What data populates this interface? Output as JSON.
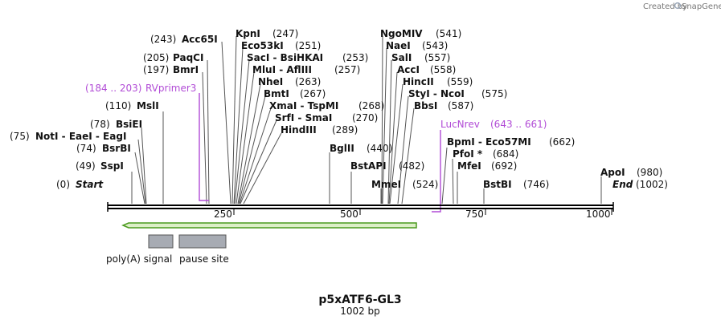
{
  "credit": {
    "prefix": "Created by",
    "brand": "SnapGene"
  },
  "plasmid": {
    "name": "p5xATF6-GL3",
    "length_label": "1002 bp"
  },
  "ruler": {
    "ticks": [
      "250",
      "500",
      "750",
      "1000"
    ]
  },
  "start_label": {
    "pos": "(0)",
    "name": "Start"
  },
  "end_label": {
    "pos": "(1002)",
    "name": "End"
  },
  "sites": [
    {
      "name": "SspI",
      "pos": "(49)"
    },
    {
      "name": "BsrBI",
      "pos": "(74)"
    },
    {
      "name": "NotI - EaeI - EagI",
      "pos": "(75)"
    },
    {
      "name": "BsiEI",
      "pos": "(78)"
    },
    {
      "name": "MslI",
      "pos": "(110)"
    },
    {
      "name": "BmrI",
      "pos": "(197)"
    },
    {
      "name": "PaqCI",
      "pos": "(205)"
    },
    {
      "name": "Acc65I",
      "pos": "(243)"
    },
    {
      "name": "KpnI",
      "pos": "(247)"
    },
    {
      "name": "Eco53kI",
      "pos": "(251)"
    },
    {
      "name": "SacI - BsiHKAI",
      "pos": "(253)"
    },
    {
      "name": "MluI - AflIII",
      "pos": "(257)"
    },
    {
      "name": "NheI",
      "pos": "(263)"
    },
    {
      "name": "BmtI",
      "pos": "(267)"
    },
    {
      "name": "XmaI - TspMI",
      "pos": "(268)"
    },
    {
      "name": "SrfI - SmaI",
      "pos": "(270)"
    },
    {
      "name": "HindIII",
      "pos": "(289)"
    },
    {
      "name": "BglII",
      "pos": "(440)"
    },
    {
      "name": "BstAPI",
      "pos": "(482)"
    },
    {
      "name": "MmeI",
      "pos": "(524)"
    },
    {
      "name": "NgoMIV",
      "pos": "(541)"
    },
    {
      "name": "NaeI",
      "pos": "(543)"
    },
    {
      "name": "SalI",
      "pos": "(557)"
    },
    {
      "name": "AccI",
      "pos": "(558)"
    },
    {
      "name": "HincII",
      "pos": "(559)"
    },
    {
      "name": "StyI - NcoI",
      "pos": "(575)"
    },
    {
      "name": "BbsI",
      "pos": "(587)"
    },
    {
      "name": "BpmI - Eco57MI",
      "pos": "(662)"
    },
    {
      "name": "PfoI *",
      "pos": "(684)"
    },
    {
      "name": "MfeI",
      "pos": "(692)"
    },
    {
      "name": "BstBI",
      "pos": "(746)"
    },
    {
      "name": "ApoI",
      "pos": "(980)"
    }
  ],
  "primers": [
    {
      "name": "RVprimer3",
      "range": "(184 .. 203)"
    },
    {
      "name": "LucNrev",
      "range": "(643 .. 661)"
    }
  ],
  "features": [
    {
      "name": "poly(A) signal",
      "color": "#a7abb3"
    },
    {
      "name": "pause site",
      "color": "#a7abb3"
    }
  ],
  "colors": {
    "primer": "#b14bd6",
    "arrow_fill": "#dcefc7",
    "arrow_stroke": "#4a9a1e"
  }
}
